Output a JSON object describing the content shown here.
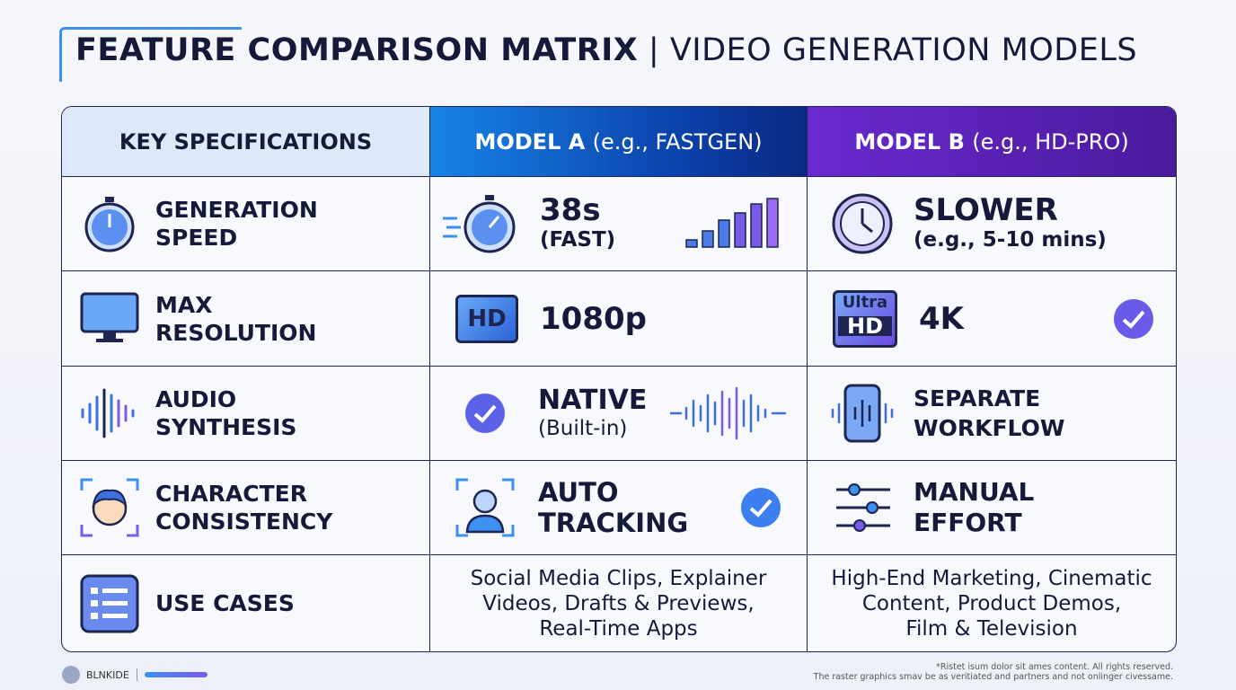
{
  "header": {
    "title_bold": "FEATURE COMPARISON MATRIX",
    "separator": "|",
    "title_rest": "VIDEO GENERATION MODELS"
  },
  "table": {
    "columns": [
      {
        "name": "KEY SPECIFICATIONS"
      },
      {
        "name": "MODEL A",
        "detail": "(e.g., FASTGEN)"
      },
      {
        "name": "MODEL B",
        "detail": "(e.g., HD-PRO)"
      }
    ],
    "rows": [
      {
        "spec": [
          "GENERATION",
          "SPEED"
        ],
        "a": {
          "main": "38s",
          "sub": "(FAST)"
        },
        "b": {
          "main": "SLOWER",
          "sub": "(e.g., 5-10 mins)"
        }
      },
      {
        "spec": [
          "MAX",
          "RESOLUTION"
        ],
        "a": {
          "badge": "HD",
          "main": "1080p"
        },
        "b": {
          "badge_top": "Ultra",
          "badge": "HD",
          "main": "4K"
        }
      },
      {
        "spec": [
          "AUDIO",
          "SYNTHESIS"
        ],
        "a": {
          "main": "NATIVE",
          "sub": "(Built-in)"
        },
        "b": {
          "main": "SEPARATE",
          "sub": "WORKFLOW"
        }
      },
      {
        "spec": [
          "CHARACTER",
          "CONSISTENCY"
        ],
        "a": {
          "main": "AUTO",
          "sub": "TRACKING"
        },
        "b": {
          "main": "MANUAL",
          "sub": "EFFORT"
        }
      },
      {
        "spec": [
          "USE CASES"
        ],
        "a": {
          "lines": [
            "Social Media Clips, Explainer",
            "Videos, Drafts & Previews,",
            "Real-Time Apps"
          ]
        },
        "b": {
          "lines": [
            "High-End Marketing, Cinematic",
            "Content, Product Demos,",
            "Film & Television"
          ]
        }
      }
    ]
  },
  "footer": {
    "brand": "BLNKIDE",
    "notes": [
      "*Ristet isum dolor sit ames content. All rights reserved.",
      "The raster graphics smav be as veritiated and partners and not onlinger civessame."
    ]
  }
}
